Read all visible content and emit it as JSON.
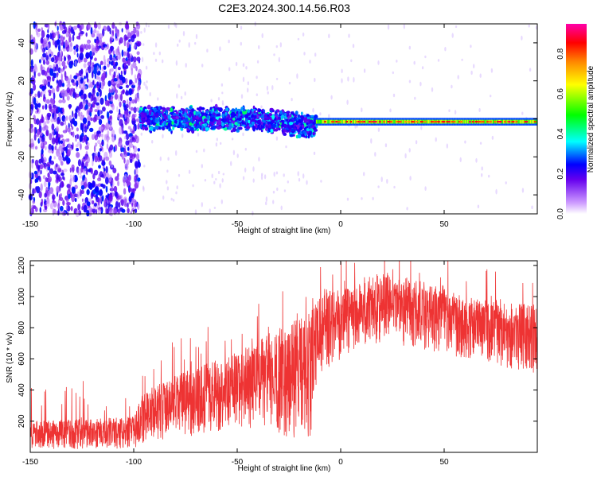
{
  "title": "C2E3.2024.300.14.56.R03",
  "chart_data": [
    {
      "type": "heatmap",
      "xlabel": "Height of straight line (km)",
      "ylabel": "Frequency (Hz)",
      "xlim": [
        -150,
        95
      ],
      "ylim": [
        -50,
        50
      ],
      "xticks": [
        -150,
        -100,
        -50,
        0,
        50
      ],
      "yticks": [
        -40,
        -20,
        0,
        20,
        40
      ],
      "grid": false,
      "description_regions": [
        {
          "x_range": [
            -150,
            -97
          ],
          "pattern": "broadband noise, amplitude 0.1-0.25",
          "freq_range": [
            -50,
            50
          ]
        },
        {
          "x_range": [
            -97,
            -12
          ],
          "pattern": "concentrated band",
          "freq_center": 0,
          "freq_halfwidth": 7,
          "amplitude_range": [
            0.15,
            0.45
          ]
        },
        {
          "x_range": [
            -12,
            95
          ],
          "pattern": "narrow line near 0 Hz",
          "freq_center": -1.5,
          "freq_halfwidth": 2,
          "amplitude_range": [
            0.3,
            0.9
          ]
        }
      ],
      "colorbar": {
        "label": "Normalized spectral amplitude",
        "range": [
          0.0,
          0.95
        ],
        "ticks": [
          "0.0",
          "0.2",
          "0.4",
          "0.6",
          "0.8"
        ]
      }
    },
    {
      "type": "line",
      "xlabel": "Height of straight line (km)",
      "ylabel": "SNR (10 * v/v)",
      "xlim": [
        -150,
        95
      ],
      "ylim": [
        0,
        1230
      ],
      "xticks": [
        -150,
        -100,
        -50,
        0,
        50
      ],
      "yticks": [
        200,
        400,
        600,
        800,
        1000,
        1200
      ],
      "color": "#ee3333",
      "envelope": [
        {
          "x": -150,
          "low": 20,
          "high": 200
        },
        {
          "x": -100,
          "low": 20,
          "high": 230
        },
        {
          "x": -95,
          "low": 60,
          "high": 400
        },
        {
          "x": -75,
          "low": 100,
          "high": 520
        },
        {
          "x": -50,
          "low": 150,
          "high": 650
        },
        {
          "x": -30,
          "low": 120,
          "high": 800
        },
        {
          "x": -15,
          "low": 40,
          "high": 900
        },
        {
          "x": -10,
          "low": 500,
          "high": 1000
        },
        {
          "x": 0,
          "low": 600,
          "high": 1100
        },
        {
          "x": 20,
          "low": 700,
          "high": 1150
        },
        {
          "x": 40,
          "low": 650,
          "high": 1100
        },
        {
          "x": 60,
          "low": 600,
          "high": 1000
        },
        {
          "x": 95,
          "low": 500,
          "high": 950
        }
      ]
    }
  ]
}
